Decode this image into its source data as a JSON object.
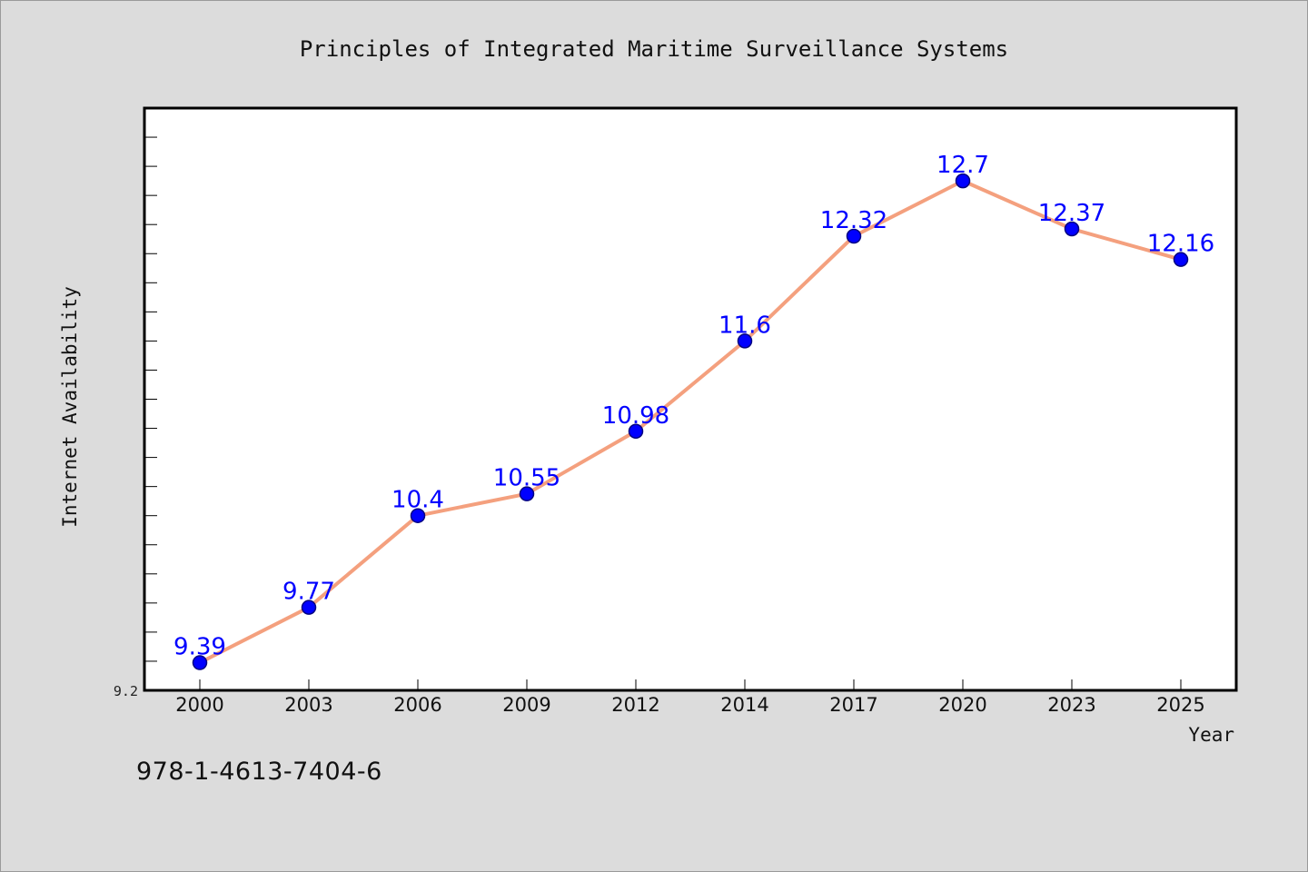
{
  "chart_data": {
    "type": "line",
    "title": "Principles of Integrated Maritime Surveillance Systems",
    "xlabel": "Year",
    "ylabel": "Internet Availability",
    "categories": [
      "2000",
      "2003",
      "2006",
      "2009",
      "2012",
      "2014",
      "2017",
      "2020",
      "2023",
      "2025"
    ],
    "series": [
      {
        "values": [
          9.39,
          9.77,
          10.4,
          10.55,
          10.98,
          11.6,
          12.32,
          12.7,
          12.37,
          12.16
        ],
        "labels": [
          "9.39",
          "9.77",
          "10.4",
          "10.55",
          "10.98",
          "11.6",
          "12.32",
          "12.7",
          "12.37",
          "12.16"
        ]
      }
    ],
    "ylim": [
      9.2,
      13.2
    ],
    "ytick_labels": [
      "9.2"
    ],
    "grid": false,
    "legend": "none",
    "colors": {
      "line": "#f4a07e",
      "marker": "#0000ff",
      "marker_edge": "#000080",
      "data_label": "#0000ff",
      "plot_bg": "#ffffff",
      "figure_bg": "#dcdcdc"
    }
  },
  "caption": "978-1-4613-7404-6"
}
